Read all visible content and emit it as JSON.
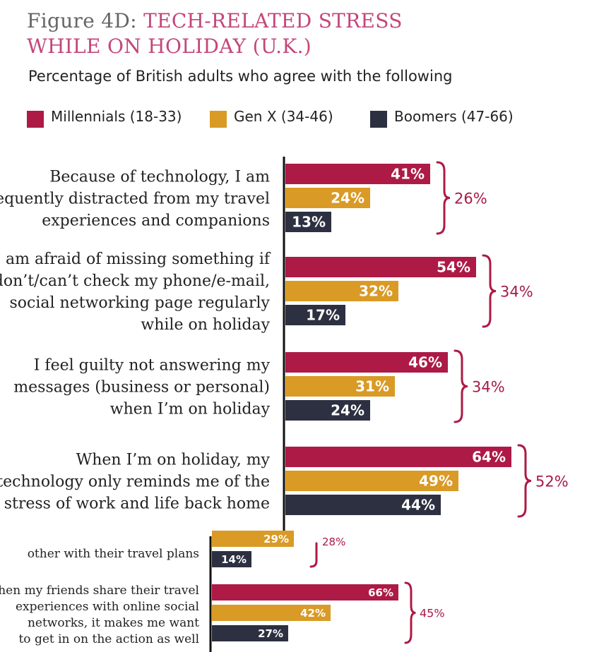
{
  "header": {
    "figure_label": "Figure 4D:",
    "title_line1": "TECH-RELATED STRESS",
    "title_line2": "WHILE ON HOLIDAY (U.K.)",
    "subtitle": "Percentage of British adults who agree with the following"
  },
  "colors": {
    "millennials": "#ac1a45",
    "genx": "#d99a26",
    "boomers": "#2c3040",
    "brace": "#ac1a45",
    "title_accent": "#c4467a"
  },
  "chart_data": {
    "type": "bar",
    "orientation": "horizontal",
    "title": "TECH-RELATED STRESS WHILE ON HOLIDAY (U.K.)",
    "subtitle": "Percentage of British adults who agree with the following",
    "legend_position": "top",
    "xlim": [
      0,
      100
    ],
    "series": [
      {
        "name": "Millennials (18-33)",
        "key": "millennials"
      },
      {
        "name": "Gen X (34-46)",
        "key": "genx"
      },
      {
        "name": "Boomers (47-66)",
        "key": "boomers"
      }
    ],
    "groups": [
      {
        "label_lines": [
          "Because of technology, I am",
          "frequently distracted from my travel",
          "experiences and companions"
        ],
        "values": [
          41,
          24,
          13
        ],
        "value_labels": [
          "41%",
          "24%",
          "13%"
        ],
        "gap_label": "26%"
      },
      {
        "label_lines": [
          "I am afraid of missing something if",
          "I don’t/can’t check my phone/e-mail,",
          "social networking page regularly",
          "while on holiday"
        ],
        "values": [
          54,
          32,
          17
        ],
        "value_labels": [
          "54%",
          "32%",
          "17%"
        ],
        "gap_label": "34%"
      },
      {
        "label_lines": [
          "I feel guilty not answering my",
          "messages (business or personal)",
          "when I’m on holiday"
        ],
        "values": [
          46,
          31,
          24
        ],
        "value_labels": [
          "46%",
          "31%",
          "24%"
        ],
        "gap_label": "34%"
      },
      {
        "label_lines": [
          "When I’m on holiday, my",
          "technology only reminds me of the",
          "stress of work and life back home"
        ],
        "values": [
          64,
          49,
          44
        ],
        "value_labels": [
          "64%",
          "49%",
          "44%"
        ],
        "gap_label": "52%"
      }
    ],
    "lower_groups": [
      {
        "label_lines": [
          "other with their travel plans"
        ],
        "values": [
          29,
          14
        ],
        "value_labels": [
          "29%",
          "14%"
        ],
        "gap_label": "28%",
        "partial": true
      },
      {
        "label_lines": [
          "When my friends share their travel",
          "experiences with online social",
          "networks, it makes me want",
          "to get in on the action as well"
        ],
        "values": [
          66,
          42,
          27
        ],
        "value_labels": [
          "66%",
          "42%",
          "27%"
        ],
        "gap_label": "45%"
      }
    ]
  }
}
